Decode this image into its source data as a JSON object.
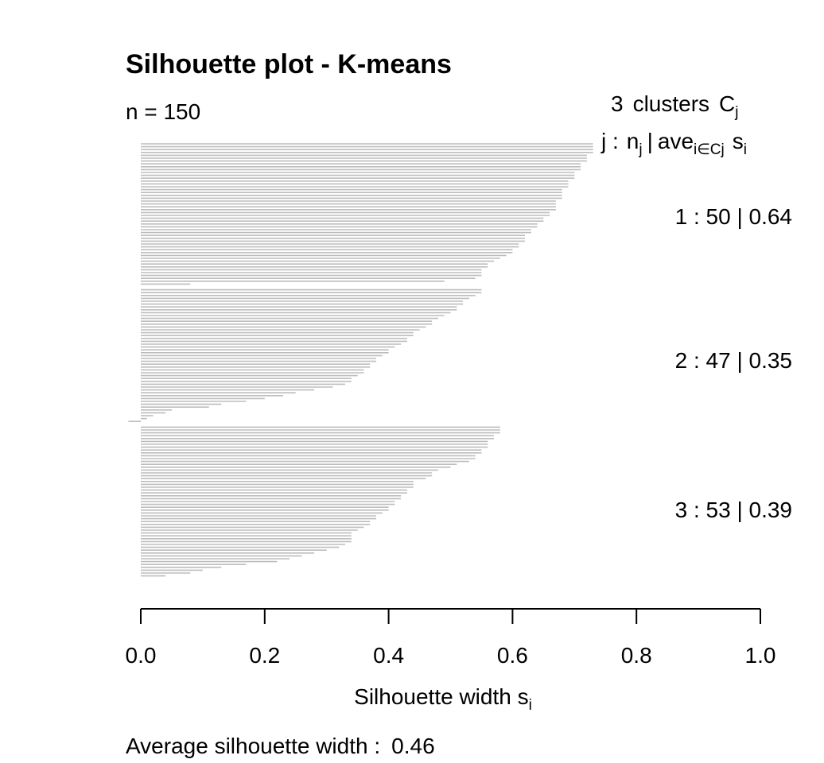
{
  "chart_data": {
    "type": "bar",
    "orientation": "horizontal",
    "title": "Silhouette plot - K-means",
    "subtitle": "n = 150",
    "header_line1": {
      "count": "3",
      "text": "clusters",
      "symbol": "C",
      "symbol_sub": "j"
    },
    "header_line2": {
      "j": "j :",
      "n": "n",
      "n_sub": "j",
      "bar": "|",
      "ave": "ave",
      "ave_sub": "i∈Cj",
      "s": "s",
      "s_sub": "i"
    },
    "xlabel": {
      "text": "Silhouette width s",
      "sub": "i"
    },
    "xlim": [
      0,
      1
    ],
    "xticks": [
      "0.0",
      "0.2",
      "0.4",
      "0.6",
      "0.8",
      "1.0"
    ],
    "average": {
      "label": "Average silhouette width :",
      "value": "0.46"
    },
    "bar_color": "#bdbdbd",
    "clusters": [
      {
        "id": "1",
        "n": "50",
        "avg": "0.64",
        "label": "1 :   50  |  0.64",
        "values": [
          0.73,
          0.73,
          0.73,
          0.73,
          0.72,
          0.72,
          0.72,
          0.71,
          0.71,
          0.71,
          0.7,
          0.7,
          0.7,
          0.69,
          0.69,
          0.69,
          0.68,
          0.68,
          0.68,
          0.68,
          0.67,
          0.67,
          0.67,
          0.67,
          0.66,
          0.66,
          0.65,
          0.65,
          0.64,
          0.64,
          0.63,
          0.63,
          0.62,
          0.62,
          0.62,
          0.61,
          0.61,
          0.6,
          0.6,
          0.59,
          0.58,
          0.57,
          0.56,
          0.56,
          0.55,
          0.55,
          0.55,
          0.54,
          0.49,
          0.08
        ]
      },
      {
        "id": "2",
        "n": "47",
        "avg": "0.35",
        "label": "2 :   47  |  0.35",
        "values": [
          0.55,
          0.55,
          0.54,
          0.53,
          0.52,
          0.52,
          0.51,
          0.51,
          0.5,
          0.49,
          0.48,
          0.47,
          0.47,
          0.46,
          0.45,
          0.44,
          0.44,
          0.43,
          0.43,
          0.42,
          0.41,
          0.4,
          0.4,
          0.39,
          0.38,
          0.38,
          0.37,
          0.37,
          0.36,
          0.36,
          0.35,
          0.34,
          0.34,
          0.33,
          0.31,
          0.28,
          0.25,
          0.23,
          0.2,
          0.17,
          0.13,
          0.11,
          0.05,
          0.04,
          0.02,
          0.01,
          -0.02
        ]
      },
      {
        "id": "3",
        "n": "53",
        "avg": "0.39",
        "label": "3 :   53  |  0.39",
        "values": [
          0.58,
          0.58,
          0.58,
          0.57,
          0.57,
          0.56,
          0.56,
          0.56,
          0.55,
          0.55,
          0.54,
          0.54,
          0.53,
          0.51,
          0.5,
          0.48,
          0.47,
          0.47,
          0.46,
          0.44,
          0.44,
          0.44,
          0.43,
          0.43,
          0.42,
          0.42,
          0.41,
          0.41,
          0.4,
          0.4,
          0.39,
          0.38,
          0.38,
          0.37,
          0.37,
          0.36,
          0.35,
          0.34,
          0.34,
          0.34,
          0.34,
          0.33,
          0.32,
          0.3,
          0.28,
          0.26,
          0.24,
          0.22,
          0.17,
          0.13,
          0.1,
          0.08,
          0.04
        ]
      }
    ]
  }
}
